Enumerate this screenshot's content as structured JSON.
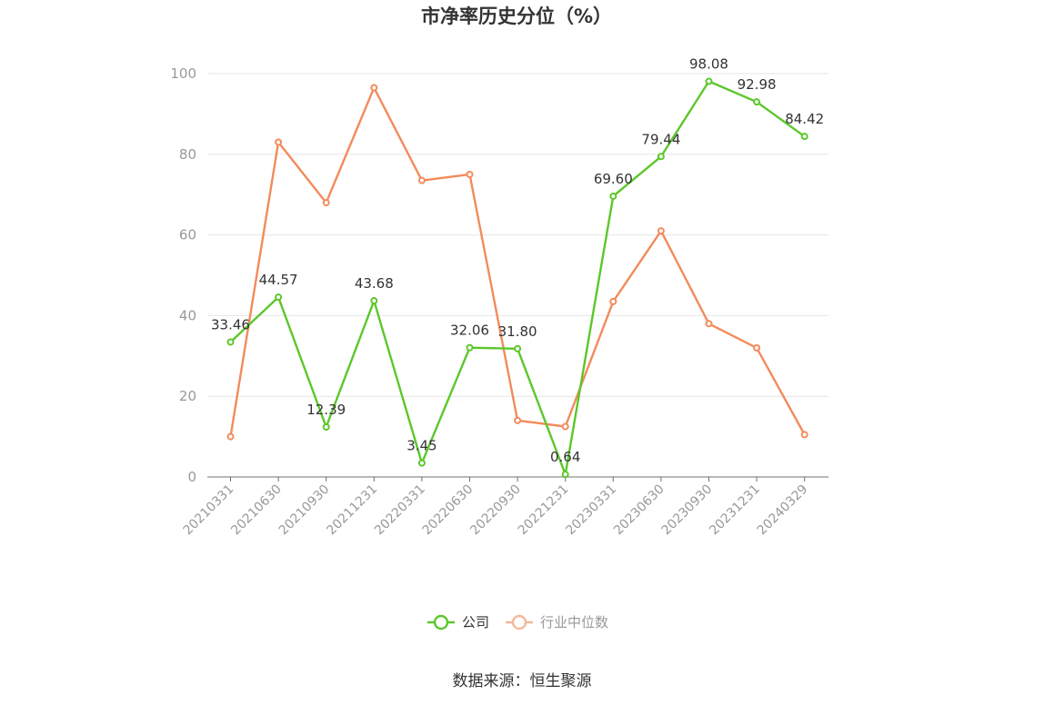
{
  "chart_data": {
    "type": "line",
    "title": "市净率历史分位（%）",
    "categories": [
      "20210331",
      "20210630",
      "20210930",
      "20211231",
      "20220331",
      "20220630",
      "20220930",
      "20221231",
      "20230331",
      "20230630",
      "20230930",
      "20231231",
      "20240329"
    ],
    "series": [
      {
        "name": "公司",
        "color": "#5cc72b",
        "values": [
          33.46,
          44.57,
          12.39,
          43.68,
          3.45,
          32.06,
          31.8,
          0.64,
          69.6,
          79.44,
          98.08,
          92.98,
          84.42
        ],
        "labels": [
          "33.46",
          "44.57",
          "12.39",
          "43.68",
          "3.45",
          "32.06",
          "31.80",
          "0.64",
          "69.60",
          "79.44",
          "98.08",
          "92.98",
          "84.42"
        ]
      },
      {
        "name": "行业中位数",
        "color": "#f28b5b",
        "legend_color": "#f5b89b",
        "values": [
          10,
          83,
          68,
          96.5,
          73.5,
          75,
          14,
          12.5,
          43.5,
          61,
          38,
          32,
          10.5
        ]
      }
    ],
    "ylim": [
      0,
      100
    ],
    "yticks": [
      0,
      20,
      40,
      60,
      80,
      100
    ],
    "xlabel": "",
    "ylabel": "",
    "grid": true,
    "legend_position": "bottom"
  },
  "footer": {
    "source": "数据来源：恒生聚源"
  }
}
